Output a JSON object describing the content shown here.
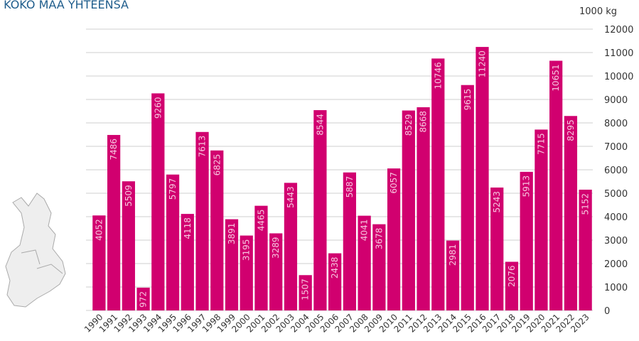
{
  "chart_data": {
    "type": "bar",
    "title": "– KOKO MAA YHTEENSÄ",
    "y_label": "1000 kg",
    "categories": [
      "1990",
      "1991",
      "1992",
      "1993",
      "1994",
      "1995",
      "1996",
      "1997",
      "1998",
      "1999",
      "2000",
      "2001",
      "2002",
      "2003",
      "2004",
      "2005",
      "2006",
      "2007",
      "2008",
      "2009",
      "2010",
      "2011",
      "2012",
      "2013",
      "2014",
      "2015",
      "2016",
      "2017",
      "2018",
      "2019",
      "2020",
      "2021",
      "2022",
      "2023"
    ],
    "values": [
      4052,
      7486,
      5509,
      972,
      9260,
      5797,
      4118,
      7613,
      6825,
      3891,
      3195,
      4465,
      3289,
      5443,
      1507,
      8544,
      2438,
      5887,
      4041,
      3678,
      6057,
      8529,
      8668,
      10746,
      2981,
      9615,
      11240,
      5243,
      2076,
      5913,
      7715,
      10651,
      8295,
      5152
    ],
    "color": "#d1006f",
    "ylim": [
      0,
      12000
    ],
    "yticks": [
      0,
      1000,
      2000,
      3000,
      4000,
      5000,
      6000,
      7000,
      8000,
      9000,
      10000,
      11000,
      12000
    ],
    "grid": true
  }
}
